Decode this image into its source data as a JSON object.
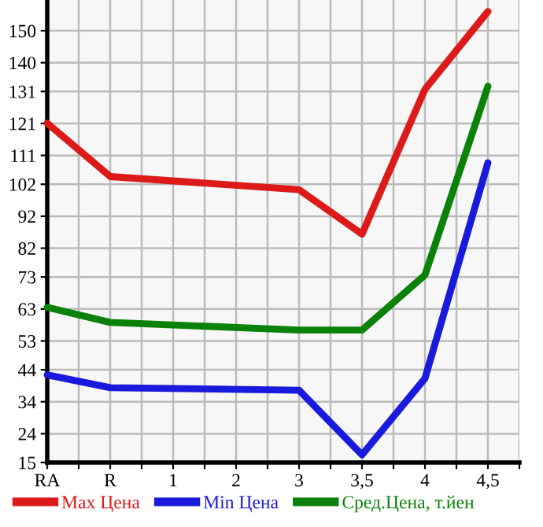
{
  "chart_data": {
    "type": "line",
    "categories": [
      "RA",
      "R",
      "1",
      "2",
      "3",
      "3,5",
      "4",
      "4,5"
    ],
    "series": [
      {
        "name": "Max Цена",
        "color": "#dd1a1a",
        "values": [
          121.1,
          104.4,
          null,
          null,
          100.3,
          86.4,
          131.7,
          156
        ]
      },
      {
        "name": "Min Цена",
        "color": "#1a1adc",
        "values": [
          42.4,
          38.4,
          null,
          null,
          37.6,
          17.4,
          41.3,
          108.7
        ]
      },
      {
        "name": "Сред.Цена, т.йен",
        "color": "#0a820a",
        "values": [
          63.5,
          58.8,
          null,
          null,
          56.4,
          56.4,
          73.6,
          132.6
        ]
      }
    ],
    "ylim": [
      15,
      159.6
    ],
    "yticks": [
      15,
      24,
      34,
      44,
      53,
      63,
      73,
      82,
      92,
      102,
      111,
      121,
      131,
      140,
      150
    ],
    "grid": true,
    "legend": "bottom",
    "marker": "none",
    "line_style": "solid"
  }
}
